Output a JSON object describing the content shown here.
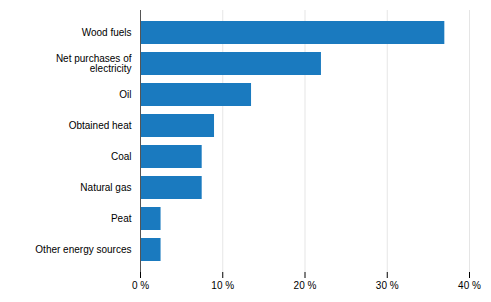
{
  "chart_data": {
    "type": "bar",
    "orientation": "horizontal",
    "categories": [
      "Other energy sources",
      "Peat",
      "Natural gas",
      "Coal",
      "Obtained heat",
      "Oil",
      "Net purchases of\nelectricity",
      "Wood fuels"
    ],
    "values": [
      2.5,
      2.5,
      7.5,
      7.5,
      9.0,
      13.5,
      22.0,
      37.0
    ],
    "color": "#1a7abf",
    "xlim": [
      0,
      40
    ],
    "xticks": [
      {
        "value": 0,
        "label": "0 %"
      },
      {
        "value": 10,
        "label": "10 %"
      },
      {
        "value": 20,
        "label": "20 %"
      },
      {
        "value": 30,
        "label": "30 %"
      },
      {
        "value": 40,
        "label": "40 %"
      }
    ],
    "grid": true
  }
}
